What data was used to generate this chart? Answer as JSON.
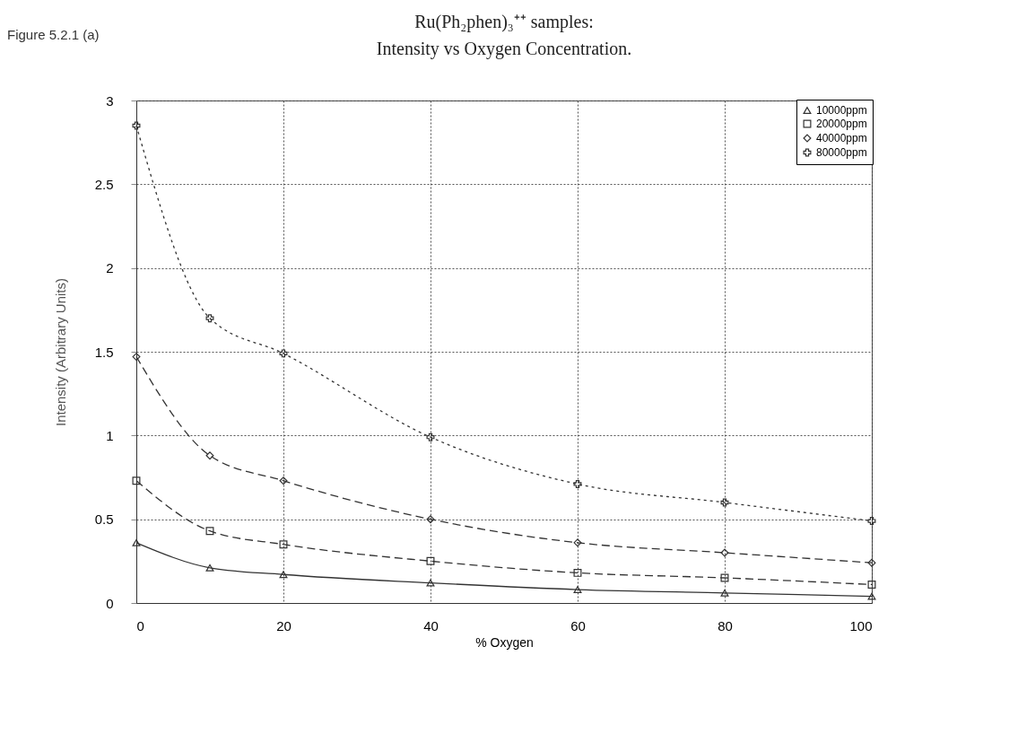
{
  "chart_data": {
    "type": "line",
    "title": "Ru(Ph₂phen)₃⁺⁺ samples:",
    "subtitle": "Intensity vs Oxygen Concentration.",
    "xlabel": "% Oxygen",
    "ylabel": "Intensity    (Arbitrary    Units)",
    "annotations": [
      "Figure  5.2.1 (a)"
    ],
    "x": [
      0,
      10,
      20,
      40,
      60,
      80,
      100
    ],
    "series": [
      {
        "name": "10000ppm",
        "color": "#333333",
        "marker": "triangle",
        "line_style": "solid",
        "values": [
          0.36,
          0.21,
          0.17,
          0.12,
          0.08,
          0.06,
          0.04
        ]
      },
      {
        "name": "20000ppm",
        "color": "#333333",
        "marker": "square",
        "line_style": "dashed",
        "values": [
          0.73,
          0.43,
          0.35,
          0.25,
          0.18,
          0.15,
          0.11
        ]
      },
      {
        "name": "40000ppm",
        "color": "#333333",
        "marker": "diamond",
        "line_style": "dashed",
        "values": [
          1.47,
          0.88,
          0.73,
          0.5,
          0.36,
          0.3,
          0.24
        ]
      },
      {
        "name": "80000ppm",
        "color": "#333333",
        "marker": "cross",
        "line_style": "dotted",
        "values": [
          2.85,
          1.7,
          1.49,
          0.99,
          0.71,
          0.6,
          0.49
        ]
      }
    ],
    "xlim": [
      0,
      100
    ],
    "xticks": [
      0,
      20,
      40,
      60,
      80,
      100
    ],
    "ylim": [
      0,
      3
    ],
    "yticks": [
      0,
      0.5,
      1,
      1.5,
      2,
      2.5,
      3
    ],
    "grid": true,
    "legend": "top right"
  }
}
